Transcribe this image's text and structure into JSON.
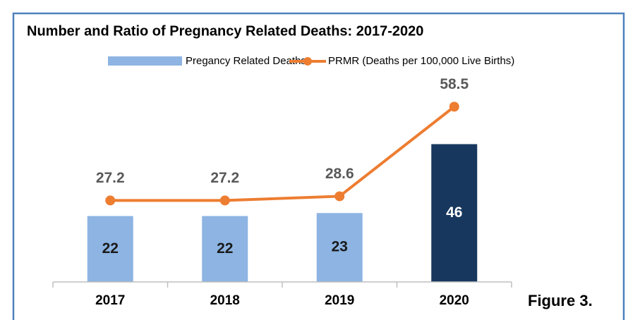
{
  "chart_data": {
    "type": "bar-line",
    "title": "Number and Ratio of Pregnancy Related Deaths: 2017-2020",
    "caption": "Figure 3.",
    "categories": [
      "2017",
      "2018",
      "2019",
      "2020"
    ],
    "series": [
      {
        "name": "Pregancy Related Deaths",
        "type": "bar",
        "color": "#8db4e2",
        "colors": [
          "#8db4e2",
          "#8db4e2",
          "#8db4e2",
          "#17375e"
        ],
        "label_colors": [
          "#1a1a1a",
          "#1a1a1a",
          "#1a1a1a",
          "#ffffff"
        ],
        "values": [
          22,
          22,
          23,
          46
        ]
      },
      {
        "name": "PRMR (Deaths per 100,000 Live Births)",
        "type": "line",
        "axis": "y2",
        "color": "#ed7d31",
        "values": [
          27.2,
          27.2,
          28.6,
          58.5
        ]
      }
    ],
    "ylim": [
      0,
      60
    ],
    "y2lim": [
      0,
      60
    ],
    "grid": false
  }
}
